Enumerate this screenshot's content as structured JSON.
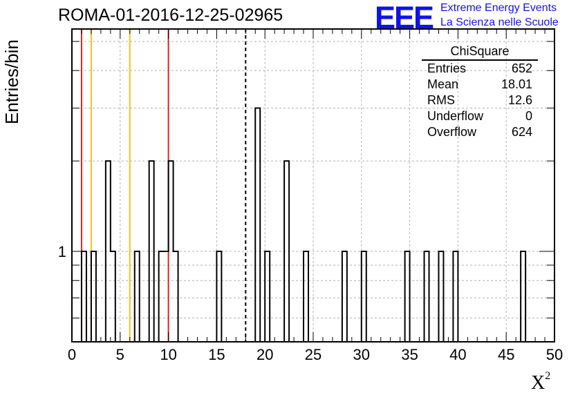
{
  "title": "ROMA-01-2016-12-25-02965",
  "logo": {
    "text": "EEE",
    "line1": "Extreme Energy Events",
    "line2": "La Scienza nelle Scuole",
    "color": "#1212e6"
  },
  "stats": {
    "title": "ChiSquare",
    "rows": [
      {
        "label": "Entries",
        "value": "652"
      },
      {
        "label": "Mean",
        "value": "18.01"
      },
      {
        "label": "RMS",
        "value": "12.6"
      },
      {
        "label": "Underflow",
        "value": "0"
      },
      {
        "label": "Overflow",
        "value": "624"
      }
    ]
  },
  "chart_data": {
    "type": "bar",
    "title": "ROMA-01-2016-12-25-02965",
    "xlabel": "X",
    "xlabel_superscript": "2",
    "ylabel": "Entries/bin",
    "xlim": [
      0,
      50
    ],
    "y_scale": "log",
    "ylim": [
      0.5,
      5.5
    ],
    "bin_width": 0.5,
    "x_ticks": [
      "0",
      "5",
      "10",
      "15",
      "20",
      "25",
      "30",
      "35",
      "40",
      "45",
      "50"
    ],
    "y_ticks": [
      "1"
    ],
    "grid": true,
    "bins": [
      {
        "x": 1.0,
        "count": 1
      },
      {
        "x": 2.0,
        "count": 1
      },
      {
        "x": 3.5,
        "count": 2
      },
      {
        "x": 4.0,
        "count": 1
      },
      {
        "x": 6.5,
        "count": 1
      },
      {
        "x": 8.0,
        "count": 2
      },
      {
        "x": 9.0,
        "count": 1
      },
      {
        "x": 9.5,
        "count": 1
      },
      {
        "x": 10.0,
        "count": 2
      },
      {
        "x": 10.5,
        "count": 1
      },
      {
        "x": 15.0,
        "count": 1
      },
      {
        "x": 19.0,
        "count": 3
      },
      {
        "x": 20.0,
        "count": 1
      },
      {
        "x": 22.0,
        "count": 2
      },
      {
        "x": 24.0,
        "count": 1
      },
      {
        "x": 28.0,
        "count": 1
      },
      {
        "x": 30.0,
        "count": 1
      },
      {
        "x": 34.5,
        "count": 1
      },
      {
        "x": 36.5,
        "count": 1
      },
      {
        "x": 38.0,
        "count": 1
      },
      {
        "x": 39.5,
        "count": 1
      },
      {
        "x": 46.5,
        "count": 1
      }
    ],
    "reference_lines": [
      {
        "x": 1,
        "color": "#dd2222",
        "style": "solid"
      },
      {
        "x": 2,
        "color": "#f5c11a",
        "style": "solid"
      },
      {
        "x": 6,
        "color": "#f5c11a",
        "style": "solid"
      },
      {
        "x": 10,
        "color": "#dd2222",
        "style": "solid"
      },
      {
        "x": 18,
        "color": "#000000",
        "style": "dashed"
      }
    ]
  }
}
